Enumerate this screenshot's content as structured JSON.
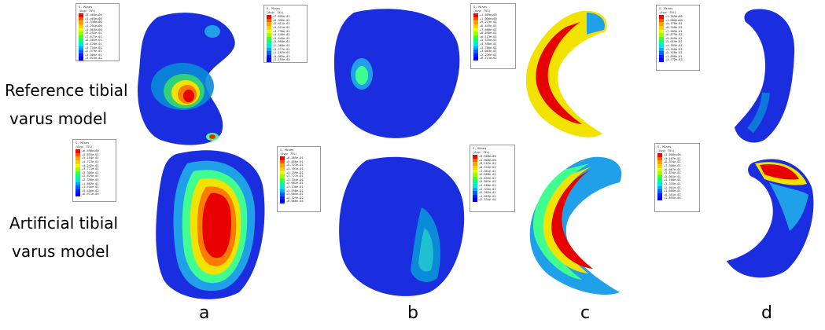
{
  "rows": [
    {
      "label_line1": "Reference tibial",
      "label_line2": "varus  model"
    },
    {
      "label_line1": "Artificial tibial",
      "label_line2": "varus model"
    }
  ],
  "columns": [
    "a",
    "b",
    "c",
    "d"
  ],
  "legend_header": {
    "line1": "S, Mises",
    "line2": "(Avg: 75%)"
  },
  "legends": [
    {
      "id": "ref-a",
      "values": [
        "+3.465e+00",
        "+1.465e+00",
        "+1.338e+00",
        "+1.201e+00",
        "+1.063e+00",
        "+9.252e-01",
        "+7.877e-01",
        "+6.503e-01",
        "+5.128e-01",
        "+3.754e-01",
        "+2.379e-01",
        "+1.005e-01",
        "+3.023e-02"
      ]
    },
    {
      "id": "ref-b",
      "values": [
        "+7.092e-01",
        "+6.502e-01",
        "+5.911e-01",
        "+5.321e-01",
        "+4.730e-01",
        "+4.140e-01",
        "+3.549e-01",
        "+2.958e-01",
        "+2.368e-01",
        "+1.777e-01",
        "+1.187e-01",
        "+5.962e-02",
        "+1.193e-04"
      ]
    },
    {
      "id": "ref-c",
      "values": [
        "+1.609e+00",
        "+1.000e+00",
        "+9.223e-01",
        "+8.445e-01",
        "+7.668e-01",
        "+6.890e-01",
        "+6.113e-01",
        "+5.335e-01",
        "+4.558e-01",
        "+3.780e-01",
        "+3.003e-01",
        "+2.226e-01",
        "+6.711e-02"
      ]
    },
    {
      "id": "ref-d",
      "values": [
        "+1.269e+00",
        "+1.000e+00",
        "+9.170e-01",
        "+8.340e-01",
        "+7.509e-01",
        "+6.679e-01",
        "+5.849e-01",
        "+5.019e-01",
        "+4.189e-01",
        "+3.358e-01",
        "+2.528e-01",
        "+1.698e-01",
        "+3.772e-03"
      ]
    },
    {
      "id": "art-a",
      "values": [
        "+6.498e+00",
        "+5.655e-01",
        "+5.184e-01",
        "+4.713e-01",
        "+4.242e-01",
        "+3.771e-01",
        "+3.300e-01",
        "+2.829e-01",
        "+2.358e-01",
        "+1.887e-01",
        "+1.416e-01",
        "+9.450e-02",
        "+6.971e-04"
      ]
    },
    {
      "id": "art-b",
      "values": [
        "+6.385e-01",
        "+5.856e-01",
        "+5.323e-01",
        "+4.791e-01",
        "+4.259e-01",
        "+3.727e-01",
        "+3.194e-01",
        "+2.662e-01",
        "+2.130e-01",
        "+1.598e-01",
        "+1.065e-01",
        "+5.329e-02",
        "+6.666e-04"
      ]
    },
    {
      "id": "art-c",
      "values": [
        "+5.568e+00",
        "+1.000e+00",
        "+9.167e-01",
        "+8.334e-01",
        "+7.501e-01",
        "+6.668e-01",
        "+5.835e-01",
        "+5.001e-01",
        "+4.168e-01",
        "+3.335e-01",
        "+2.502e-01",
        "+1.669e-01",
        "+2.534e-04"
      ]
    },
    {
      "id": "art-d",
      "values": [
        "+1.000e+00",
        "+9.167e-01",
        "+8.334e-01",
        "+7.500e-01",
        "+6.667e-01",
        "+5.834e-01",
        "+5.001e-01",
        "+4.168e-01",
        "+3.335e-01",
        "+2.501e-01",
        "+1.668e-01",
        "+8.351e-02",
        "+1.895e-04"
      ]
    }
  ],
  "colors": {
    "scale": [
      "#ff0000",
      "#ff5a00",
      "#ffa000",
      "#ffd000",
      "#e8ff00",
      "#9cff00",
      "#40ff30",
      "#00ff90",
      "#00e6e6",
      "#00a8ff",
      "#0060ff",
      "#0020ff",
      "#0000ff"
    ],
    "base": "#1a2ee0"
  }
}
